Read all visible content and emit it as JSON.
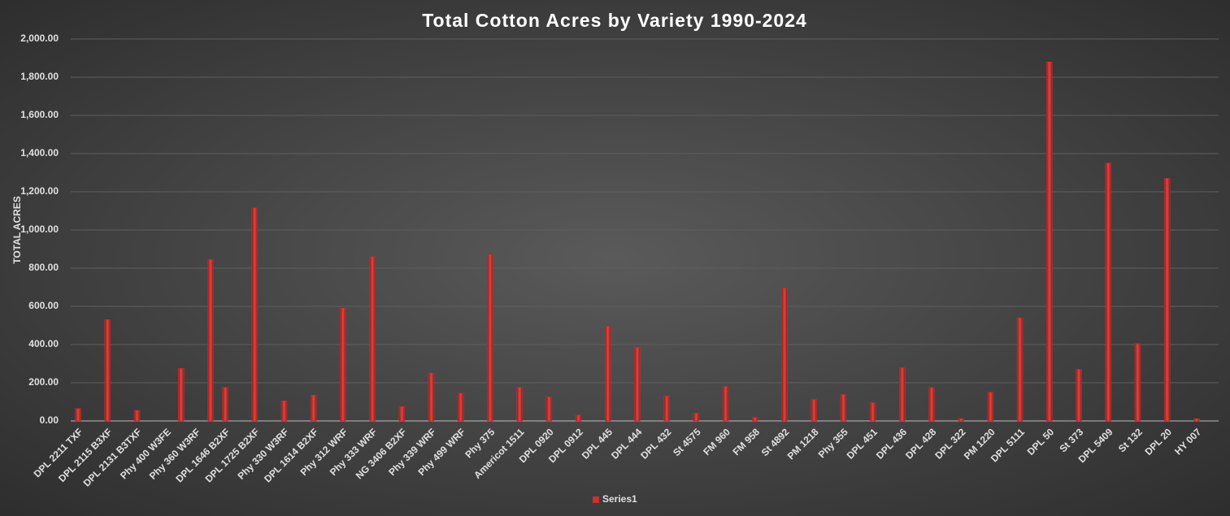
{
  "chart_data": {
    "type": "bar",
    "title": "Total Cotton Acres by Variety 1990-2024",
    "y_label": "TOTAL ACRES",
    "categories": [
      "DPL 2211 TXF",
      null,
      "DPL 2115 B3XF",
      null,
      "DPL 2131 B3TXF",
      null,
      "Phy 400 W3FE",
      null,
      "Phy 360 W3RF",
      null,
      "DPL 1646 B2XF",
      null,
      "DPL 1725 B2XF",
      null,
      "Phy 330 W3RF",
      null,
      "DPL 1614 B2XF",
      null,
      "Phy 312 WRF",
      null,
      "Phy 333 WRF",
      null,
      "NG 3406 B2XF",
      null,
      "Phy 339 WRF",
      null,
      "Phy 499 WRF",
      null,
      "Phy 375",
      null,
      "Americot 1511",
      null,
      "DPL 0920",
      null,
      "DPL 0912",
      null,
      "DPL 445",
      null,
      "DPL 444",
      null,
      "DPL 432",
      null,
      "St 4575",
      null,
      "FM 960",
      null,
      "FM 958",
      null,
      "St 4892",
      null,
      "PM 1218",
      null,
      "Phy 355",
      null,
      "DPL 451",
      null,
      "DPL 436",
      null,
      "DPL 428",
      null,
      "DPL 322",
      null,
      "PM 1220",
      null,
      "DPL 5111",
      null,
      "DPL 50",
      null,
      "St 373",
      null,
      "DPL 5409",
      null,
      "St 132",
      null,
      "DPL 20",
      null,
      "HY 007",
      null
    ],
    "series": [
      {
        "name": "Series1",
        "color": "#d0302e",
        "values": [
          65,
          null,
          530,
          null,
          55,
          null,
          null,
          275,
          null,
          845,
          175,
          null,
          1115,
          null,
          105,
          null,
          135,
          null,
          590,
          null,
          860,
          null,
          75,
          null,
          250,
          null,
          145,
          null,
          870,
          null,
          175,
          null,
          125,
          null,
          30,
          null,
          495,
          null,
          385,
          null,
          130,
          null,
          40,
          null,
          180,
          null,
          18,
          null,
          695,
          null,
          112,
          null,
          138,
          null,
          95,
          null,
          278,
          null,
          175,
          null,
          12,
          null,
          150,
          null,
          540,
          null,
          1880,
          null,
          270,
          null,
          1350,
          null,
          405,
          null,
          1270,
          null,
          12,
          null
        ]
      }
    ],
    "ylim": [
      0,
      2000
    ],
    "yticks": [
      {
        "value": 0,
        "label": "0.00"
      },
      {
        "value": 200,
        "label": "200.00"
      },
      {
        "value": 400,
        "label": "400.00"
      },
      {
        "value": 600,
        "label": "600.00"
      },
      {
        "value": 800,
        "label": "800.00"
      },
      {
        "value": 1000,
        "label": "1,000.00"
      },
      {
        "value": 1200,
        "label": "1,200.00"
      },
      {
        "value": 1400,
        "label": "1,400.00"
      },
      {
        "value": 1600,
        "label": "1,600.00"
      },
      {
        "value": 1800,
        "label": "1,800.00"
      },
      {
        "value": 2000,
        "label": "2,000.00"
      }
    ],
    "grid": true,
    "legend": "bottom"
  }
}
